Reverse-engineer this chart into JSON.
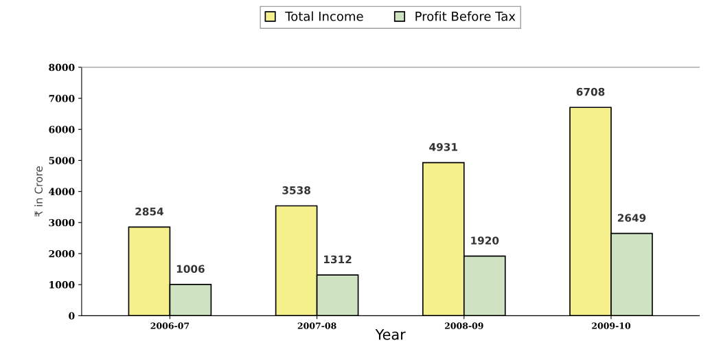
{
  "chart_data": {
    "type": "bar",
    "xlabel": "Year",
    "ylabel": "₹ in Crore",
    "categories": [
      "2006-07",
      "2007-08",
      "2008-09",
      "2009-10"
    ],
    "series": [
      {
        "name": "Total Income",
        "color": "#f6f08c",
        "values": [
          2854,
          3538,
          4931,
          6708
        ]
      },
      {
        "name": "Profit Before Tax",
        "color": "#cfe3c3",
        "values": [
          1006,
          1312,
          1920,
          2649
        ]
      }
    ],
    "ylim": [
      0,
      8000
    ],
    "yticks": [
      0,
      1000,
      2000,
      3000,
      4000,
      5000,
      6000,
      7000,
      8000
    ],
    "grid": false,
    "legend": "top",
    "data_labels": true
  }
}
